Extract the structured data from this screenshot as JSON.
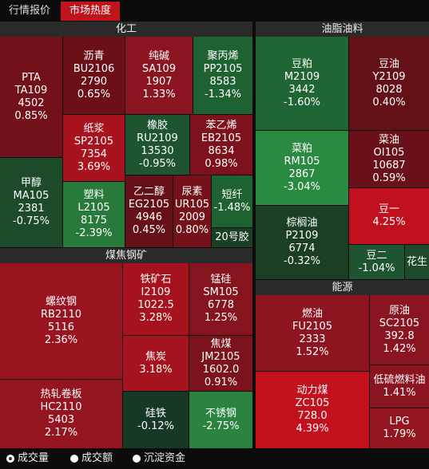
{
  "tabs": [
    {
      "label": "行情报价",
      "active": false
    },
    {
      "label": "市场热度",
      "active": true
    }
  ],
  "sections": [
    {
      "title": "化工",
      "tiles": [
        {
          "lines": [
            "PTA",
            "TA109",
            "4502",
            "0.85%"
          ],
          "color": "#73111a"
        },
        {
          "lines": [
            "甲醇",
            "MA105",
            "2381",
            "-0.75%"
          ],
          "color": "#1d4a2b"
        },
        {
          "lines": [
            "沥青",
            "BU2106",
            "2790",
            "0.65%"
          ],
          "color": "#6c1018"
        },
        {
          "lines": [
            "纯碱",
            "SA109",
            "1907",
            "1.33%"
          ],
          "color": "#8a1520"
        },
        {
          "lines": [
            "聚丙烯",
            "PP2105",
            "8583",
            "-1.34%"
          ],
          "color": "#1f6232"
        },
        {
          "lines": [
            "纸浆",
            "SP2105",
            "7354",
            "3.69%"
          ],
          "color": "#a8131e"
        },
        {
          "lines": [
            "橡胶",
            "RU2109",
            "13530",
            "-0.95%"
          ],
          "color": "#1e5430"
        },
        {
          "lines": [
            "苯乙烯",
            "EB2105",
            "8634",
            "0.98%"
          ],
          "color": "#7e121c"
        },
        {
          "lines": [
            "塑料",
            "L2105",
            "8175",
            "-2.39%"
          ],
          "color": "#287a3b"
        },
        {
          "lines": [
            "乙二醇",
            "EG2105",
            "4946",
            "0.45%"
          ],
          "color": "#651018"
        },
        {
          "lines": [
            "尿素",
            "UR105",
            "2009",
            "0.80%"
          ],
          "color": "#741119"
        },
        {
          "lines": [
            "短纤",
            "-1.48%"
          ],
          "color": "#1f6232"
        },
        {
          "lines": [
            "20号胶"
          ],
          "color": "#1b3f25"
        }
      ]
    },
    {
      "title": "油脂油料",
      "tiles": [
        {
          "lines": [
            "豆粕",
            "M2109",
            "3442",
            "-1.60%"
          ],
          "color": "#206634"
        },
        {
          "lines": [
            "豆油",
            "Y2109",
            "8028",
            "0.40%"
          ],
          "color": "#631017"
        },
        {
          "lines": [
            "菜粕",
            "RM105",
            "2867",
            "-3.04%"
          ],
          "color": "#2b8a42"
        },
        {
          "lines": [
            "菜油",
            "OI105",
            "10687",
            "0.59%"
          ],
          "color": "#6a1018"
        },
        {
          "lines": [
            "棕榈油",
            "P2109",
            "6774",
            "-0.32%"
          ],
          "color": "#1b3f25"
        },
        {
          "lines": [
            "豆一",
            "4.25%"
          ],
          "color": "#c1101d"
        },
        {
          "lines": [
            "豆二",
            "-1.04%"
          ],
          "color": "#1e5430"
        },
        {
          "lines": [
            "花生"
          ],
          "color": "#1d4a2b"
        }
      ]
    },
    {
      "title": "煤焦钢矿",
      "tiles": [
        {
          "lines": [
            "螺纹钢",
            "RB2110",
            "5116",
            "2.36%"
          ],
          "color": "#9a141f"
        },
        {
          "lines": [
            "热轧卷板",
            "HC2110",
            "5403",
            "2.17%"
          ],
          "color": "#94141f"
        },
        {
          "lines": [
            "铁矿石",
            "I2109",
            "1022.5",
            "3.28%"
          ],
          "color": "#a6131e"
        },
        {
          "lines": [
            "锰硅",
            "SM105",
            "6778",
            "1.25%"
          ],
          "color": "#86141e"
        },
        {
          "lines": [
            "焦炭",
            "3.18%"
          ],
          "color": "#a4131e"
        },
        {
          "lines": [
            "焦煤",
            "JM2105",
            "1602.0",
            "0.91%"
          ],
          "color": "#7c121b"
        },
        {
          "lines": [
            "硅铁",
            "-0.12%"
          ],
          "color": "#183826"
        },
        {
          "lines": [
            "不锈钢",
            "-2.75%"
          ],
          "color": "#2a843f"
        }
      ]
    },
    {
      "title": "能源",
      "tiles": [
        {
          "lines": [
            "燃油",
            "FU2105",
            "2333",
            "1.52%"
          ],
          "color": "#8c1520"
        },
        {
          "lines": [
            "原油",
            "SC2105",
            "392.8",
            "1.42%"
          ],
          "color": "#8a1520"
        },
        {
          "lines": [
            "动力煤",
            "ZC105",
            "728.0",
            "4.39%"
          ],
          "color": "#c3101d"
        },
        {
          "lines": [
            "低硫燃料油",
            "1.41%"
          ],
          "color": "#8a1520"
        },
        {
          "lines": [
            "LPG",
            "1.79%"
          ],
          "color": "#931520"
        }
      ]
    }
  ],
  "options": [
    {
      "label": "成交量",
      "selected": true
    },
    {
      "label": "成交额",
      "selected": false
    },
    {
      "label": "沉淀资金",
      "selected": false
    }
  ]
}
